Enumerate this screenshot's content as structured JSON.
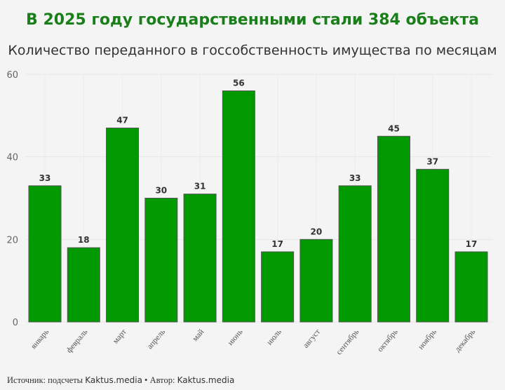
{
  "chart_data": {
    "type": "bar",
    "title": "В 2025 году государственными стали 384 объекта",
    "subtitle": "Количество переданного в госсобственность имущества по месяцам",
    "categories": [
      "январь",
      "февраль",
      "март",
      "апрель",
      "май",
      "июнь",
      "июль",
      "август",
      "сентябрь",
      "октябрь",
      "ноябрь",
      "декабрь"
    ],
    "values": [
      33,
      18,
      47,
      30,
      31,
      56,
      17,
      20,
      33,
      45,
      37,
      17
    ],
    "ylim": [
      0,
      60
    ],
    "yticks": [
      0,
      20,
      40,
      60
    ],
    "grid": true,
    "xlabel": "",
    "ylabel": "",
    "bar_color": "#009900"
  },
  "footer": {
    "source_label": "Источник: подсчеты",
    "source_value": "Kaktus.media",
    "separator": " • ",
    "author_label": "Автор:",
    "author_value": "Kaktus.media"
  }
}
